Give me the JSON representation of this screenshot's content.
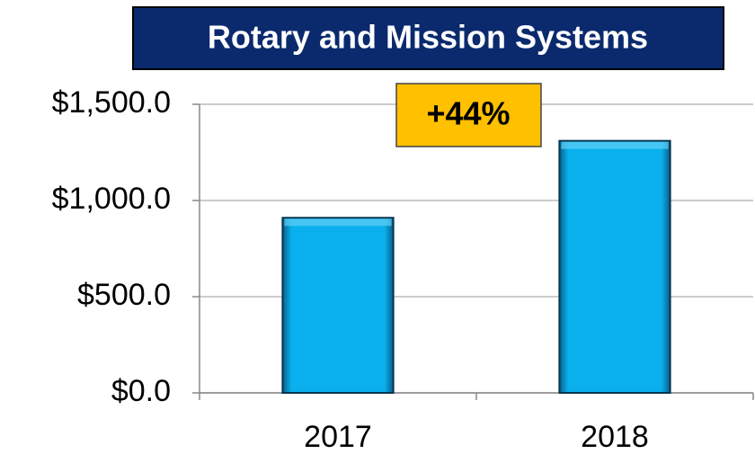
{
  "chart_data": {
    "type": "bar",
    "title": "Rotary and Mission Systems",
    "annotation": "+44%",
    "categories": [
      "2017",
      "2018"
    ],
    "values": [
      910,
      1310
    ],
    "color": "#0ab0ee",
    "ylim": [
      0,
      1500
    ],
    "yticks": [
      {
        "value": 0,
        "label": "$0.0"
      },
      {
        "value": 500,
        "label": "$500.0"
      },
      {
        "value": 1000,
        "label": "$1,000.0"
      },
      {
        "value": 1500,
        "label": "$1,500.0"
      }
    ],
    "grid": true
  }
}
